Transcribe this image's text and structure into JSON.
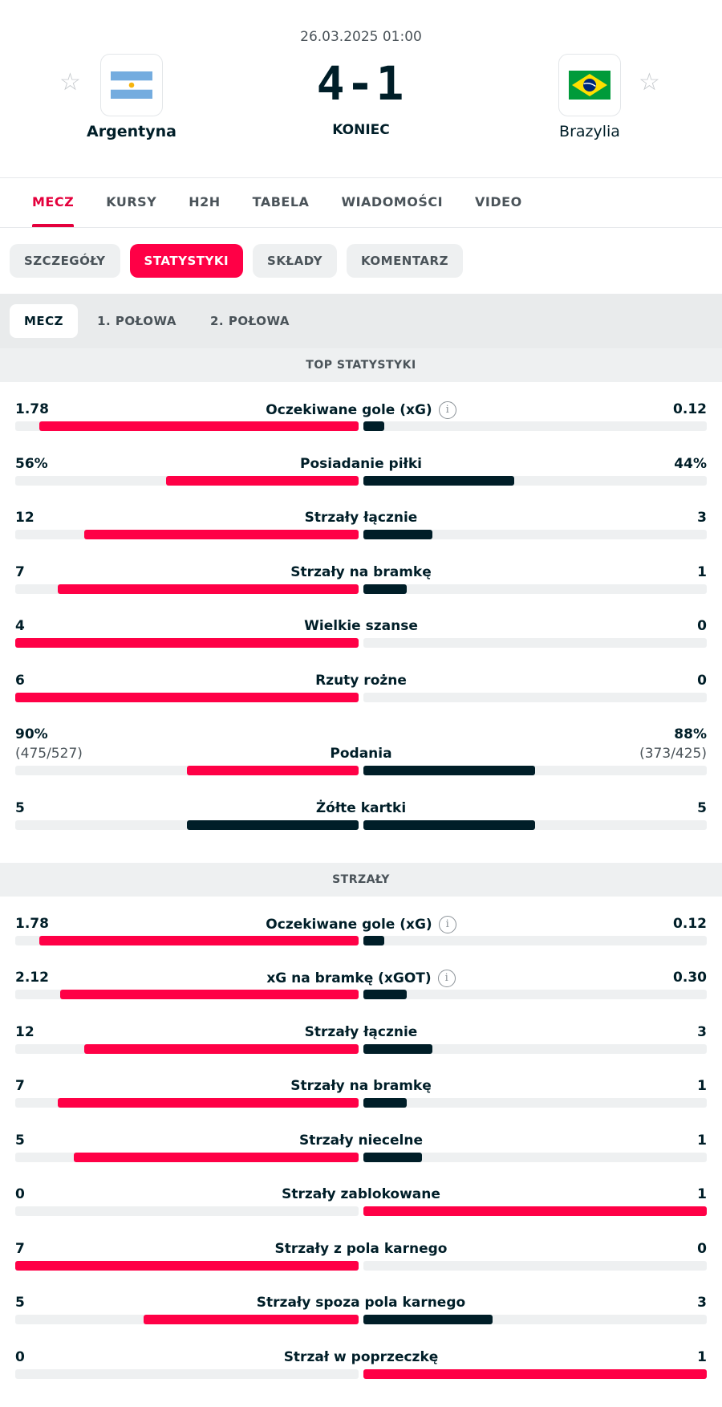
{
  "match": {
    "date": "26.03.2025 01:00",
    "score": "4-1",
    "status": "KONIEC",
    "home": {
      "name": "Argentyna",
      "flag": "argentina-flag"
    },
    "away": {
      "name": "Brazylia",
      "flag": "brazil-flag"
    }
  },
  "main_tabs": [
    "MECZ",
    "KURSY",
    "H2H",
    "TABELA",
    "WIADOMOŚCI",
    "VIDEO"
  ],
  "sub_tabs": [
    "SZCZEGÓŁY",
    "STATYSTYKI",
    "SKŁADY",
    "KOMENTARZ"
  ],
  "period_tabs": [
    "MECZ",
    "1. POŁOWA",
    "2. POŁOWA"
  ],
  "colors": {
    "accent": "#e4003c",
    "home_bar": "#ff0046",
    "away_bar": "#001e28",
    "track": "#eef0f1"
  },
  "sections": [
    {
      "title": "TOP STATYSTYKI",
      "stats": [
        {
          "name": "Oczekiwane gole (xG)",
          "home": "1.78",
          "away": "0.12",
          "home_frac": 0.93,
          "away_frac": 0.06,
          "info": true
        },
        {
          "name": "Posiadanie piłki",
          "home": "56%",
          "away": "44%",
          "home_frac": 0.56,
          "away_frac": 0.44
        },
        {
          "name": "Strzały łącznie",
          "home": "12",
          "away": "3",
          "home_frac": 0.8,
          "away_frac": 0.2
        },
        {
          "name": "Strzały na bramkę",
          "home": "7",
          "away": "1",
          "home_frac": 0.875,
          "away_frac": 0.125
        },
        {
          "name": "Wielkie szanse",
          "home": "4",
          "away": "0",
          "home_frac": 1.0,
          "away_frac": 0.0
        },
        {
          "name": "Rzuty rożne",
          "home": "6",
          "away": "0",
          "home_frac": 1.0,
          "away_frac": 0.0
        },
        {
          "name": "Podania",
          "home": "90%",
          "away": "88%",
          "home_sub": "(475/527)",
          "away_sub": "(373/425)",
          "home_frac": 0.5,
          "away_frac": 0.5,
          "away_bar_color": "#001e28"
        },
        {
          "name": "Żółte kartki",
          "home": "5",
          "away": "5",
          "home_frac": 0.5,
          "away_frac": 0.5,
          "home_bar_color": "#001e28"
        }
      ]
    },
    {
      "title": "STRZAŁY",
      "stats": [
        {
          "name": "Oczekiwane gole (xG)",
          "home": "1.78",
          "away": "0.12",
          "home_frac": 0.93,
          "away_frac": 0.06,
          "info": true
        },
        {
          "name": "xG na bramkę (xGOT)",
          "home": "2.12",
          "away": "0.30",
          "home_frac": 0.87,
          "away_frac": 0.125,
          "info": true
        },
        {
          "name": "Strzały łącznie",
          "home": "12",
          "away": "3",
          "home_frac": 0.8,
          "away_frac": 0.2
        },
        {
          "name": "Strzały na bramkę",
          "home": "7",
          "away": "1",
          "home_frac": 0.875,
          "away_frac": 0.125
        },
        {
          "name": "Strzały niecelne",
          "home": "5",
          "away": "1",
          "home_frac": 0.83,
          "away_frac": 0.17
        },
        {
          "name": "Strzały zablokowane",
          "home": "0",
          "away": "1",
          "home_frac": 0.0,
          "away_frac": 1.0,
          "away_bar_color": "#ff0046"
        },
        {
          "name": "Strzały z pola karnego",
          "home": "7",
          "away": "0",
          "home_frac": 1.0,
          "away_frac": 0.0
        },
        {
          "name": "Strzały spoza pola karnego",
          "home": "5",
          "away": "3",
          "home_frac": 0.625,
          "away_frac": 0.375
        },
        {
          "name": "Strzał w poprzeczkę",
          "home": "0",
          "away": "1",
          "home_frac": 0.0,
          "away_frac": 1.0,
          "away_bar_color": "#ff0046"
        }
      ]
    }
  ]
}
